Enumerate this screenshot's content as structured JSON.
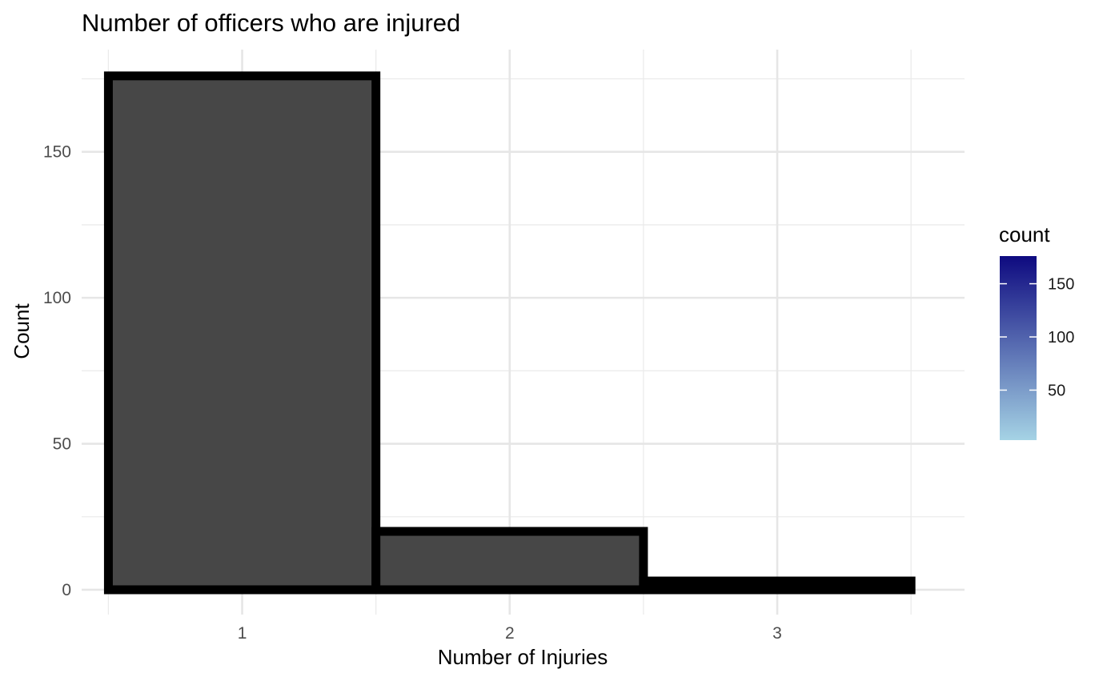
{
  "chart_data": {
    "type": "bar",
    "title": "Number of officers who are injured",
    "xlabel": "Number of Injuries",
    "ylabel": "Count",
    "categories": [
      "1",
      "2",
      "3"
    ],
    "values": [
      176,
      20,
      3
    ],
    "xlim": [
      0.4,
      3.7
    ],
    "ylim": [
      -8.5,
      185
    ],
    "y_ticks": [
      0,
      50,
      100,
      150
    ],
    "y_minor_ticks": [
      25,
      75,
      125,
      175
    ],
    "grid": true,
    "bar_fill": "#474747",
    "bar_outline": "#000000",
    "legend": {
      "title": "count",
      "position": "right",
      "colors": {
        "low": "#a5d3e5",
        "high": "#0e0a80"
      },
      "range": [
        3,
        176
      ],
      "ticks": [
        50,
        100,
        150
      ]
    }
  }
}
